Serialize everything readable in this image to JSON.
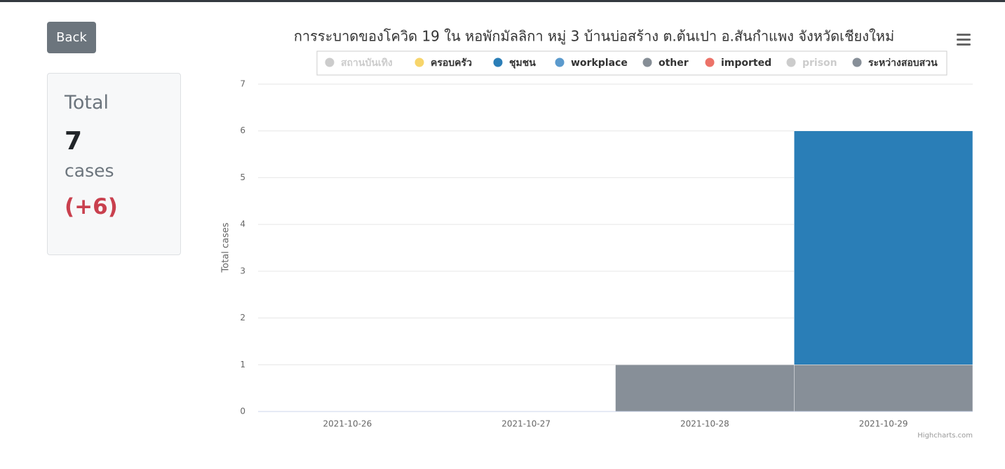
{
  "back_button": "Back",
  "summary": {
    "label": "Total",
    "total": "7",
    "unit": "cases",
    "change": "(+6)"
  },
  "chart_data": {
    "type": "bar",
    "stacked": true,
    "title": "การระบาดของโควิด 19 ใน หอพักมัลลิกา หมู่ 3 บ้านบ่อสร้าง ต.ต้นเปา อ.สันกำแพง จังหวัดเชียงใหม่",
    "y_label": "Total cases",
    "credits": "Highcharts.com",
    "categories": [
      "2021-10-26",
      "2021-10-27",
      "2021-10-28",
      "2021-10-29"
    ],
    "ylim": [
      0,
      7
    ],
    "yticks": [
      0,
      1,
      2,
      3,
      4,
      5,
      6,
      7
    ],
    "grid": true,
    "series": [
      {
        "name": "สถานบันเทิง",
        "color": "#cccccc",
        "visible": false,
        "values": [
          0,
          0,
          0,
          0
        ]
      },
      {
        "name": "ครอบครัว",
        "color": "#f7d56b",
        "visible": true,
        "values": [
          0,
          0,
          0,
          0
        ]
      },
      {
        "name": "ชุมชน",
        "color": "#2a7eb7",
        "visible": true,
        "values": [
          0,
          0,
          0,
          5
        ]
      },
      {
        "name": "workplace",
        "color": "#5b9acd",
        "visible": true,
        "values": [
          0,
          0,
          0,
          0
        ]
      },
      {
        "name": "other",
        "color": "#868e96",
        "visible": true,
        "values": [
          0,
          0,
          0,
          0
        ]
      },
      {
        "name": "imported",
        "color": "#ec7268",
        "visible": true,
        "values": [
          0,
          0,
          0,
          0
        ]
      },
      {
        "name": "prison",
        "color": "#cccccc",
        "visible": false,
        "values": [
          0,
          0,
          0,
          0
        ]
      },
      {
        "name": "ระหว่างสอบสวน",
        "color": "#878f98",
        "visible": true,
        "values": [
          0,
          0,
          1,
          1
        ]
      }
    ]
  }
}
